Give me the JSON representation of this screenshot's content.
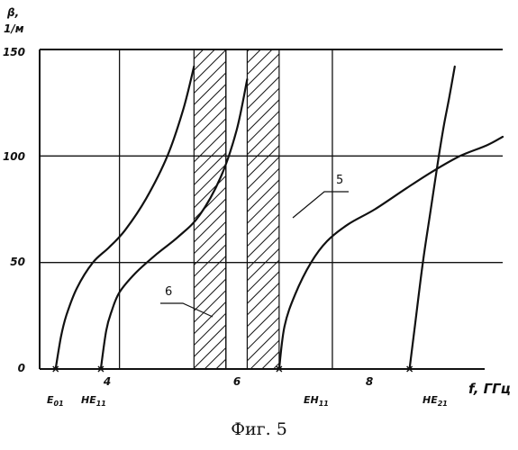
{
  "chart_data": {
    "type": "line",
    "title": "",
    "xlabel": "f, ГГц",
    "ylabel_line1": "β,",
    "ylabel_line2": "1/м",
    "xlim": [
      2.5,
      11.2
    ],
    "ylim": [
      0,
      150
    ],
    "grid": true,
    "x_tick_labels": [
      {
        "x": 4,
        "label": "4"
      },
      {
        "x": 6,
        "label": "6"
      },
      {
        "x": 8,
        "label": "8"
      }
    ],
    "y_tick_labels": [
      {
        "y": 0,
        "label": "0"
      },
      {
        "y": 50,
        "label": "50"
      },
      {
        "y": 100,
        "label": "100"
      },
      {
        "y": 150,
        "label": "150"
      }
    ],
    "cutoff_markers": [
      {
        "label": "E01",
        "main": "E",
        "sub": "01",
        "x": 2.8
      },
      {
        "label": "HE11",
        "main": "HE",
        "sub": "11",
        "x": 3.65
      },
      {
        "label": "EH11",
        "main": "EH",
        "sub": "11",
        "x": 7.0
      },
      {
        "label": "HE21",
        "main": "HE",
        "sub": "21",
        "x": 9.45
      }
    ],
    "series": [
      {
        "x": [
          2.8,
          2.9,
          3.0,
          3.2,
          3.5,
          3.8,
          4.1,
          4.5,
          4.9,
          5.2,
          5.4
        ],
        "y": [
          0,
          15,
          25,
          38,
          50,
          57,
          65,
          80,
          100,
          122,
          142
        ]
      },
      {
        "x": [
          3.65,
          3.75,
          3.85,
          4.0,
          4.3,
          4.7,
          5.1,
          5.5,
          5.9,
          6.2,
          6.4
        ],
        "y": [
          0,
          18,
          27,
          36,
          45,
          54,
          62,
          72,
          90,
          112,
          136
        ]
      },
      {
        "x": [
          7.0,
          7.1,
          7.3,
          7.6,
          7.9,
          8.3,
          8.8,
          9.4,
          9.9,
          10.4,
          10.9,
          11.2
        ],
        "y": [
          0,
          20,
          35,
          50,
          60,
          68,
          75,
          85,
          93,
          100,
          105,
          109
        ]
      },
      {
        "x": [
          9.45,
          9.55,
          9.7,
          9.85,
          10.0,
          10.1,
          10.2,
          10.3
        ],
        "y": [
          0,
          20,
          50,
          75,
          100,
          115,
          128,
          142
        ]
      }
    ],
    "shaded_bands": [
      {
        "label": "6",
        "x_range": [
          5.4,
          6.0
        ]
      },
      {
        "label": "5",
        "x_range": [
          6.4,
          7.0
        ]
      }
    ]
  },
  "caption": "Фиг. 5"
}
